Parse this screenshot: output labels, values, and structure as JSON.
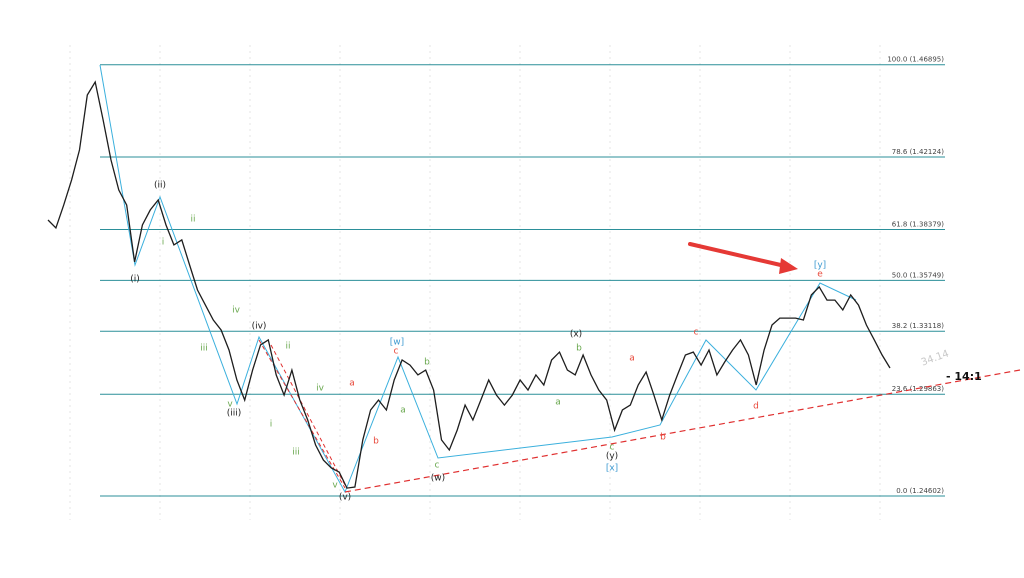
{
  "chart_data": {
    "type": "line",
    "series": [
      {
        "color": "#1e1e1e",
        "values": [
          1.3887,
          1.3846,
          1.3964,
          1.4094,
          1.4249,
          1.4533,
          1.46,
          1.4404,
          1.4197,
          1.4042,
          1.3964,
          1.367,
          1.3861,
          1.3939,
          1.399,
          1.3861,
          1.3758,
          1.3784,
          1.3654,
          1.3525,
          1.3447,
          1.337,
          1.3318,
          1.3215,
          1.306,
          1.2956,
          1.3111,
          1.3241,
          1.3267,
          1.3086,
          1.2982,
          1.3111,
          1.2956,
          1.2853,
          1.2724,
          1.2646,
          1.2605,
          1.2584,
          1.2501,
          1.2507,
          1.275,
          1.2905,
          1.2956,
          1.2905,
          1.306,
          1.3163,
          1.3137,
          1.3086,
          1.3111,
          1.3008,
          1.275,
          1.2698,
          1.2801,
          1.293,
          1.2853,
          1.2956,
          1.306,
          1.2982,
          1.293,
          1.2982,
          1.306,
          1.3008,
          1.3086,
          1.3034,
          1.3163,
          1.3204,
          1.3111,
          1.3086,
          1.3189,
          1.3086,
          1.3008,
          1.2956,
          1.2801,
          1.2905,
          1.293,
          1.3034,
          1.3101,
          1.2982,
          1.2853,
          1.2982,
          1.3086,
          1.3189,
          1.3204,
          1.3137,
          1.3215,
          1.3086,
          1.3153,
          1.3215,
          1.3267,
          1.3189,
          1.3034,
          1.3215,
          1.3344,
          1.338,
          1.338,
          1.338,
          1.337,
          1.3499,
          1.3541,
          1.3473,
          1.3473,
          1.3422,
          1.3499,
          1.3447,
          1.3344,
          1.3267,
          1.3189,
          1.3122
        ]
      }
    ],
    "ylim": [
      1.23,
      1.475
    ],
    "fib_color": "#2b8f99",
    "fib_levels": [
      {
        "value": 1.46895,
        "label": "100.0 (1.46895)"
      },
      {
        "value": 1.42124,
        "label": "78.6 (1.42124)"
      },
      {
        "value": 1.38379,
        "label": "61.8 (1.38379)"
      },
      {
        "value": 1.35749,
        "label": "50.0 (1.35749)"
      },
      {
        "value": 1.33118,
        "label": "38.2 (1.33118)"
      },
      {
        "value": 1.29863,
        "label": "23.6 (1.29863)"
      },
      {
        "value": 1.24602,
        "label": "0.0 (1.24602)"
      }
    ],
    "wave_labels": [
      {
        "text": "(ii)",
        "color": "#222222"
      },
      {
        "text": "(i)",
        "color": "#222222"
      },
      {
        "text": "ii",
        "color": "#6aa84f"
      },
      {
        "text": "i",
        "color": "#6aa84f"
      },
      {
        "text": "iv",
        "color": "#6aa84f"
      },
      {
        "text": "iii",
        "color": "#6aa84f"
      },
      {
        "text": "(iv)",
        "color": "#222222"
      },
      {
        "text": "v",
        "color": "#6aa84f"
      },
      {
        "text": "(iii)",
        "color": "#222222"
      },
      {
        "text": "ii",
        "color": "#6aa84f"
      },
      {
        "text": "iv",
        "color": "#6aa84f"
      },
      {
        "text": "i",
        "color": "#6aa84f"
      },
      {
        "text": "iii",
        "color": "#6aa84f"
      },
      {
        "text": "v",
        "color": "#6aa84f"
      },
      {
        "text": "(v)",
        "color": "#222222"
      },
      {
        "text": "a",
        "color": "#e8483a"
      },
      {
        "text": "b",
        "color": "#e8483a"
      },
      {
        "text": "c",
        "color": "#e8483a"
      },
      {
        "text": "[w]",
        "color": "#3d9ad1"
      },
      {
        "text": "b",
        "color": "#6aa84f"
      },
      {
        "text": "a",
        "color": "#6aa84f"
      },
      {
        "text": "c",
        "color": "#6aa84f"
      },
      {
        "text": "(w)",
        "color": "#222222"
      },
      {
        "text": "(x)",
        "color": "#222222"
      },
      {
        "text": "b",
        "color": "#6aa84f"
      },
      {
        "text": "a",
        "color": "#6aa84f"
      },
      {
        "text": "c",
        "color": "#6aa84f"
      },
      {
        "text": "(y)",
        "color": "#222222"
      },
      {
        "text": "[x]",
        "color": "#3d9ad1"
      },
      {
        "text": "a",
        "color": "#e8483a"
      },
      {
        "text": "b",
        "color": "#e8483a"
      },
      {
        "text": "c",
        "color": "#e8483a"
      },
      {
        "text": "d",
        "color": "#e8483a"
      },
      {
        "text": "e",
        "color": "#e8483a"
      },
      {
        "text": "[y]",
        "color": "#3d9ad1"
      }
    ],
    "annotations": [
      "34.14",
      "- 14:1"
    ]
  }
}
